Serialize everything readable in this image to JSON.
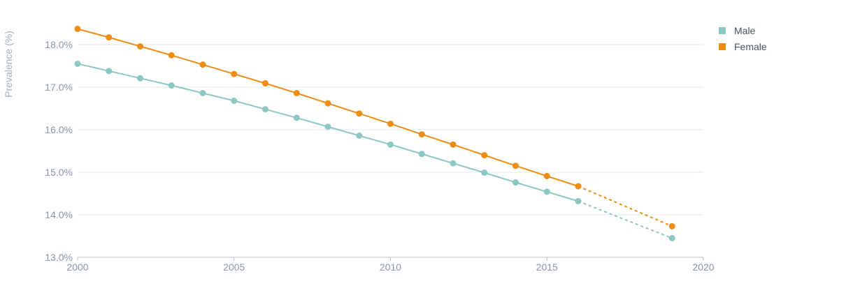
{
  "chart_data": {
    "type": "line",
    "title": "",
    "xlabel": "",
    "ylabel": "Prevalence (%)",
    "xlim": [
      2000,
      2020
    ],
    "ylim": [
      13.0,
      18.4
    ],
    "x_ticks": [
      2000,
      2005,
      2010,
      2015,
      2020
    ],
    "x_tick_labels": [
      "2000",
      "2005",
      "2010",
      "2015",
      "2020"
    ],
    "y_ticks": [
      13.0,
      14.0,
      15.0,
      16.0,
      17.0,
      18.0
    ],
    "y_tick_labels": [
      "13.0%",
      "14.0%",
      "15.0%",
      "16.0%",
      "17.0%",
      "18.0%"
    ],
    "grid": true,
    "legend_position": "top-right",
    "x": [
      2000,
      2001,
      2002,
      2003,
      2004,
      2005,
      2006,
      2007,
      2008,
      2009,
      2010,
      2011,
      2012,
      2013,
      2014,
      2015,
      2016,
      2019
    ],
    "dashed_from": 2016,
    "series": [
      {
        "name": "Male",
        "color": "#8cc7c4",
        "values": [
          17.55,
          17.38,
          17.21,
          17.04,
          16.86,
          16.68,
          16.48,
          16.28,
          16.07,
          15.86,
          15.65,
          15.43,
          15.21,
          14.99,
          14.76,
          14.54,
          14.32,
          13.45
        ]
      },
      {
        "name": "Female",
        "color": "#ee8c14",
        "values": [
          18.37,
          18.17,
          17.96,
          17.75,
          17.53,
          17.31,
          17.09,
          16.86,
          16.62,
          16.38,
          16.14,
          15.89,
          15.65,
          15.4,
          15.15,
          14.91,
          14.67,
          13.73
        ]
      }
    ]
  }
}
